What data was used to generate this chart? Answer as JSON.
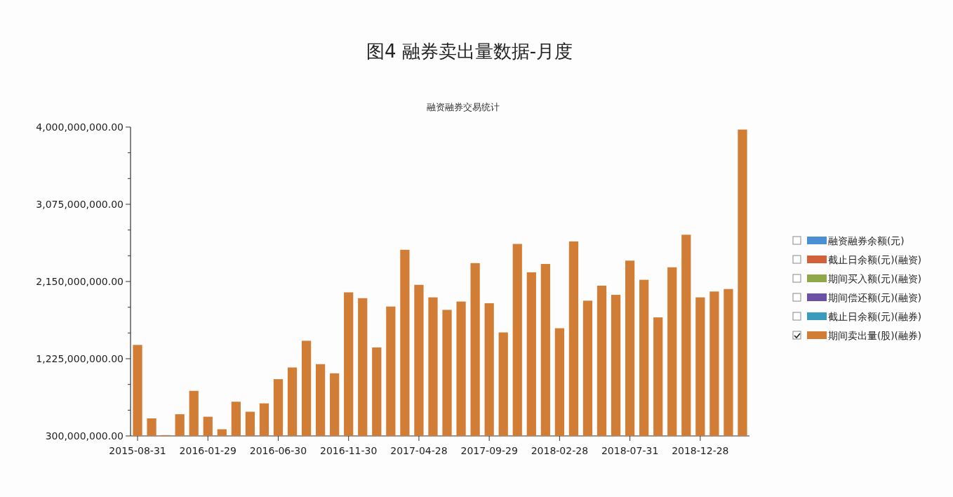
{
  "chart_data": {
    "type": "bar",
    "title": "图4 融券卖出量数据-月度",
    "subtitle": "融资融券交易统计",
    "categories": [
      "2015-08-31",
      null,
      null,
      null,
      null,
      "2016-01-29",
      null,
      null,
      null,
      null,
      "2016-06-30",
      null,
      null,
      null,
      null,
      "2016-11-30",
      null,
      null,
      null,
      null,
      "2017-04-28",
      null,
      null,
      null,
      null,
      "2017-09-29",
      null,
      null,
      null,
      null,
      "2018-02-28",
      null,
      null,
      null,
      null,
      "2018-07-31",
      null,
      null,
      null,
      null,
      "2018-12-28",
      null,
      null,
      null
    ],
    "series": [
      {
        "name": "融资融券余额(元)",
        "color": "#4a8fd4",
        "values": [
          null,
          null,
          null,
          null,
          null,
          null,
          null,
          null,
          null,
          null,
          null,
          null,
          null,
          null,
          null,
          null,
          null,
          null,
          null,
          null,
          null,
          null,
          null,
          null,
          null,
          null,
          null,
          null,
          null,
          null,
          null,
          null,
          null,
          null,
          null,
          null,
          null,
          null,
          null,
          null,
          null,
          null,
          null,
          null
        ]
      },
      {
        "name": "截止日余额(元)(融资)",
        "color": "#d2603a",
        "values": [
          null,
          null,
          null,
          null,
          null,
          null,
          null,
          null,
          null,
          null,
          null,
          null,
          null,
          null,
          null,
          null,
          null,
          null,
          null,
          null,
          null,
          null,
          null,
          null,
          null,
          null,
          null,
          null,
          null,
          null,
          null,
          null,
          null,
          null,
          null,
          null,
          null,
          null,
          null,
          null,
          null,
          null,
          null,
          null
        ]
      },
      {
        "name": "期间买入额(元)(融资)",
        "color": "#8fa84a",
        "values": [
          null,
          null,
          null,
          null,
          null,
          null,
          null,
          null,
          null,
          null,
          null,
          null,
          null,
          null,
          null,
          null,
          null,
          null,
          null,
          null,
          null,
          null,
          null,
          null,
          null,
          null,
          null,
          null,
          null,
          null,
          null,
          null,
          null,
          null,
          null,
          null,
          null,
          null,
          null,
          null,
          null,
          null,
          null,
          null
        ]
      },
      {
        "name": "期间偿还额(元)(融资)",
        "color": "#6a51a3",
        "values": [
          null,
          null,
          null,
          null,
          null,
          null,
          null,
          null,
          null,
          null,
          null,
          null,
          null,
          null,
          null,
          null,
          null,
          null,
          null,
          null,
          null,
          null,
          null,
          null,
          null,
          null,
          null,
          null,
          null,
          null,
          null,
          null,
          null,
          null,
          null,
          null,
          null,
          null,
          null,
          null,
          null,
          null,
          null,
          null
        ]
      },
      {
        "name": "截止日余额(元)(融券)",
        "color": "#3a9bbf",
        "values": [
          null,
          null,
          null,
          null,
          null,
          null,
          null,
          null,
          null,
          null,
          null,
          null,
          null,
          null,
          null,
          null,
          null,
          null,
          null,
          null,
          null,
          null,
          null,
          null,
          null,
          null,
          null,
          null,
          null,
          null,
          null,
          null,
          null,
          null,
          null,
          null,
          null,
          null,
          null,
          null,
          null,
          null,
          null,
          null
        ]
      },
      {
        "name": "期间卖出量(股)(融券)",
        "color": "#d27d35",
        "values": [
          1390000000,
          510000000,
          310000000,
          560000000,
          840000000,
          530000000,
          380000000,
          710000000,
          590000000,
          690000000,
          980000000,
          1120000000,
          1440000000,
          1160000000,
          1050000000,
          2020000000,
          1950000000,
          1360000000,
          1850000000,
          2530000000,
          2110000000,
          1960000000,
          1810000000,
          1910000000,
          2370000000,
          1890000000,
          1540000000,
          2600000000,
          2260000000,
          2360000000,
          1590000000,
          2630000000,
          1920000000,
          2100000000,
          1990000000,
          2400000000,
          2170000000,
          1720000000,
          2320000000,
          2710000000,
          1960000000,
          2030000000,
          2060000000,
          3970000000
        ]
      }
    ],
    "ylim": [
      300000000,
      4000000000
    ],
    "yticks": [
      {
        "value": 300000000,
        "label": "300,000,000.00"
      },
      {
        "value": 608333333,
        "label": null
      },
      {
        "value": 916666667,
        "label": null
      },
      {
        "value": 1225000000,
        "label": "1,225,000,000.00"
      },
      {
        "value": 1533333333,
        "label": null
      },
      {
        "value": 1841666667,
        "label": null
      },
      {
        "value": 2150000000,
        "label": "2,150,000,000.00"
      },
      {
        "value": 2458333333,
        "label": null
      },
      {
        "value": 2766666667,
        "label": null
      },
      {
        "value": 3075000000,
        "label": "3,075,000,000.00"
      },
      {
        "value": 3383333333,
        "label": null
      },
      {
        "value": 3691666667,
        "label": null
      },
      {
        "value": 4000000000,
        "label": "4,000,000,000.00"
      }
    ],
    "grid": false,
    "legend": "right"
  }
}
